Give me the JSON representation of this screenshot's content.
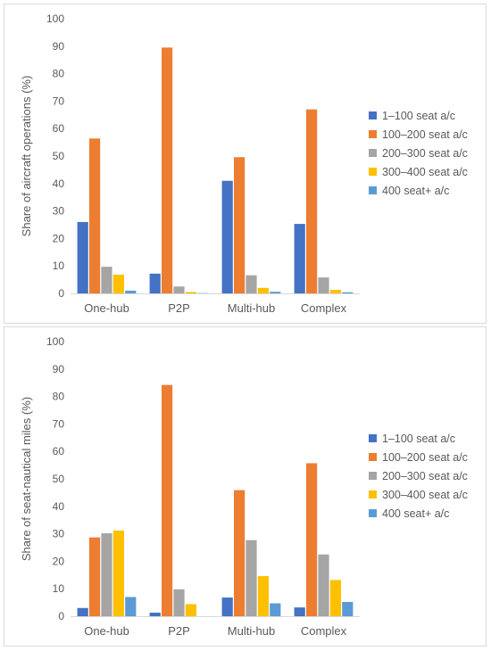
{
  "chart_data": [
    {
      "type": "bar",
      "title": "",
      "xlabel": "",
      "ylabel": "Share of aircraft operations (%)",
      "ylim": [
        0,
        100
      ],
      "yticks": [
        0,
        10,
        20,
        30,
        40,
        50,
        60,
        70,
        80,
        90,
        100
      ],
      "grid": false,
      "legend_position": "right",
      "categories": [
        "One-hub",
        "P2P",
        "Multi-hub",
        "Complex"
      ],
      "series": [
        {
          "name": "1–100 seat a/c",
          "color": "#4472C4",
          "values": [
            26,
            7.2,
            41,
            25.3
          ]
        },
        {
          "name": "100–200 seat a/c",
          "color": "#ED7D31",
          "values": [
            56.4,
            89.5,
            49.6,
            67
          ]
        },
        {
          "name": "200–300 seat a/c",
          "color": "#A5A5A5",
          "values": [
            9.7,
            2.5,
            6.6,
            5.8
          ]
        },
        {
          "name": "300–400 seat a/c",
          "color": "#FFC000",
          "values": [
            6.8,
            0.5,
            2,
            1.3
          ]
        },
        {
          "name": "400 seat+ a/c",
          "color": "#5B9BD5",
          "values": [
            1,
            0.1,
            0.6,
            0.4
          ]
        }
      ]
    },
    {
      "type": "bar",
      "title": "",
      "xlabel": "",
      "ylabel": "Share of seat-nautical miles (%)",
      "ylim": [
        0,
        100
      ],
      "yticks": [
        0,
        10,
        20,
        30,
        40,
        50,
        60,
        70,
        80,
        90,
        100
      ],
      "grid": false,
      "legend_position": "right",
      "categories": [
        "One-hub",
        "P2P",
        "Multi-hub",
        "Complex"
      ],
      "series": [
        {
          "name": "1–100 seat a/c",
          "color": "#4472C4",
          "values": [
            3,
            1.3,
            6.8,
            3.2
          ]
        },
        {
          "name": "100–200 seat a/c",
          "color": "#ED7D31",
          "values": [
            28.7,
            84.2,
            45.9,
            55.7
          ]
        },
        {
          "name": "200–300 seat a/c",
          "color": "#A5A5A5",
          "values": [
            30.2,
            9.8,
            27.7,
            22.5
          ]
        },
        {
          "name": "300–400 seat a/c",
          "color": "#FFC000",
          "values": [
            31.2,
            4.4,
            14.6,
            13.2
          ]
        },
        {
          "name": "400 seat+ a/c",
          "color": "#5B9BD5",
          "values": [
            7,
            0,
            4.7,
            5.2
          ]
        }
      ]
    }
  ]
}
